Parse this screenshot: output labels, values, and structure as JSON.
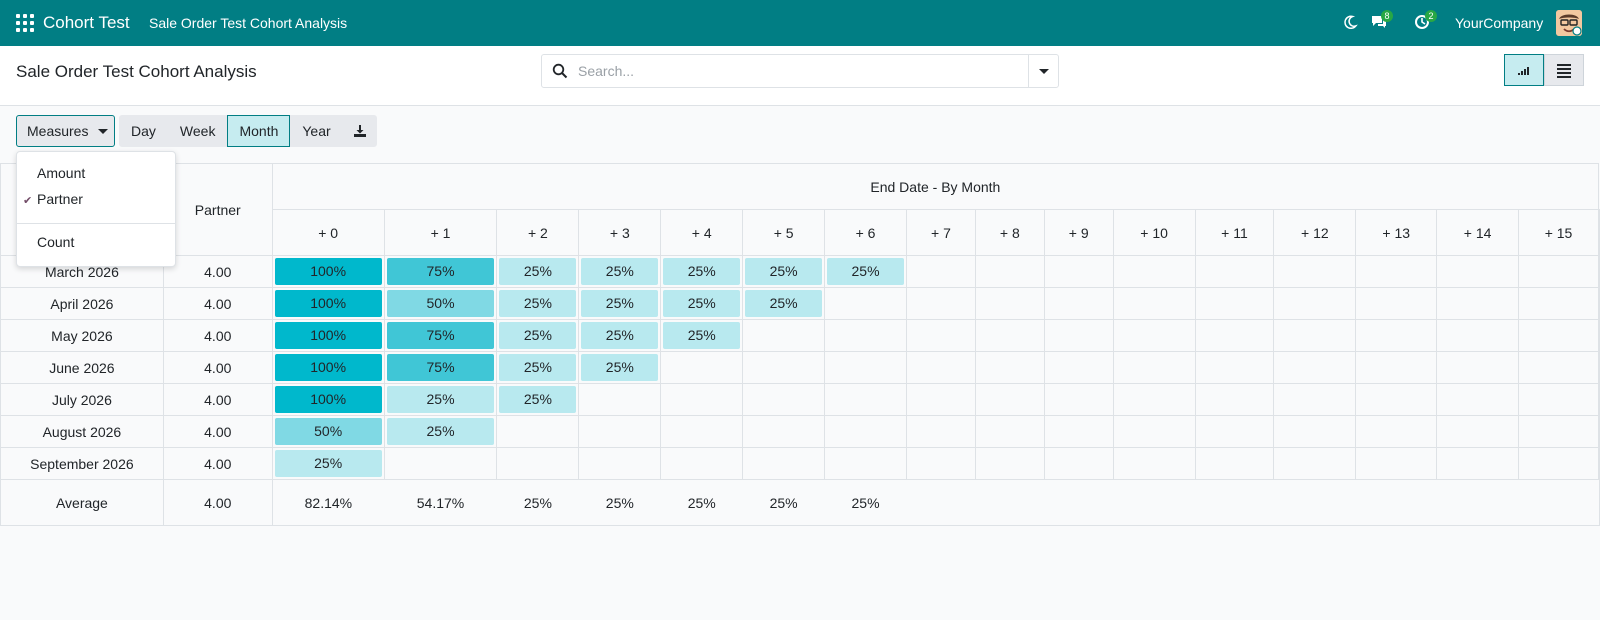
{
  "navbar": {
    "app_name": "Cohort Test",
    "menu_item": "Sale Order Test Cohort Analysis",
    "messages_count": "8",
    "activities_count": "2",
    "company": "YourCompany",
    "accent_color": "#017e84"
  },
  "control_panel": {
    "title": "Sale Order Test Cohort Analysis",
    "search_placeholder": "Search...",
    "views": [
      "cohort-view",
      "list-view"
    ],
    "active_view": "cohort-view"
  },
  "toolbar": {
    "measures_label": "Measures",
    "periods": [
      "Day",
      "Week",
      "Month",
      "Year"
    ],
    "active_period": "Month",
    "download_icon": "download-icon"
  },
  "measures_dropdown": {
    "items": [
      {
        "label": "Amount",
        "checked": false
      },
      {
        "label": "Partner",
        "checked": true
      },
      {
        "label": "Count",
        "checked": false
      }
    ]
  },
  "table": {
    "measure_header": "Partner",
    "period_header": "End Date - By Month",
    "intervals": [
      "+ 0",
      "+ 1",
      "+ 2",
      "+ 3",
      "+ 4",
      "+ 5",
      "+ 6",
      "+ 7",
      "+ 8",
      "+ 9",
      "+ 10",
      "+ 11",
      "+ 12",
      "+ 13",
      "+ 14",
      "+ 15"
    ],
    "rows": [
      {
        "date": "March 2026",
        "measure": "4.00",
        "values": [
          "100%",
          "75%",
          "25%",
          "25%",
          "25%",
          "25%",
          "25%"
        ],
        "levels": [
          100,
          75,
          25,
          25,
          25,
          25,
          25
        ]
      },
      {
        "date": "April 2026",
        "measure": "4.00",
        "values": [
          "100%",
          "50%",
          "25%",
          "25%",
          "25%",
          "25%"
        ],
        "levels": [
          100,
          50,
          25,
          25,
          25,
          25
        ]
      },
      {
        "date": "May 2026",
        "measure": "4.00",
        "values": [
          "100%",
          "75%",
          "25%",
          "25%",
          "25%"
        ],
        "levels": [
          100,
          75,
          25,
          25,
          25
        ]
      },
      {
        "date": "June 2026",
        "measure": "4.00",
        "values": [
          "100%",
          "75%",
          "25%",
          "25%"
        ],
        "levels": [
          100,
          75,
          25,
          25
        ]
      },
      {
        "date": "July 2026",
        "measure": "4.00",
        "values": [
          "100%",
          "25%",
          "25%"
        ],
        "levels": [
          100,
          25,
          25
        ]
      },
      {
        "date": "August 2026",
        "measure": "4.00",
        "values": [
          "50%",
          "25%"
        ],
        "levels": [
          50,
          25
        ]
      },
      {
        "date": "September 2026",
        "measure": "4.00",
        "values": [
          "25%"
        ],
        "levels": [
          25
        ]
      }
    ],
    "footer": {
      "label": "Average",
      "measure": "4.00",
      "values": [
        "82.14%",
        "54.17%",
        "25%",
        "25%",
        "25%",
        "25%",
        "25%"
      ]
    },
    "colors": {
      "level_100": "#00b8cc",
      "level_75": "#40c6d6",
      "level_50": "#80d9e4",
      "level_25": "#b8e9ef"
    }
  }
}
